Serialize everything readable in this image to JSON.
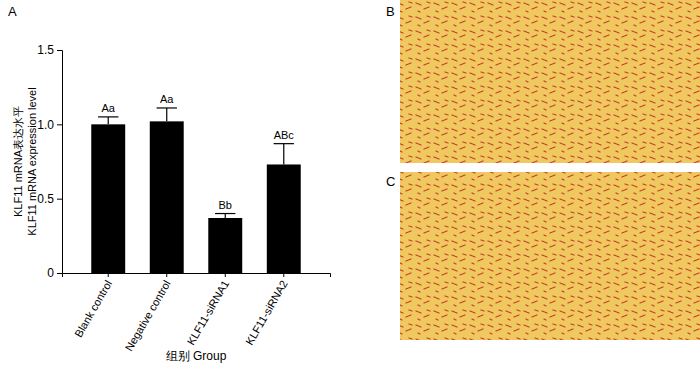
{
  "chart_data": {
    "type": "bar",
    "panel_labels": [
      "A",
      "B",
      "C"
    ],
    "y_label": [
      "KLF11 mRNA表达水平",
      "KLF11 mRNA expression level"
    ],
    "x_label": "组别 Group",
    "categories": [
      "Blank control",
      "Negative control",
      "KLF11-siRNA1",
      "KLF11-siRNA2"
    ],
    "values": [
      1.0,
      1.02,
      0.37,
      0.73
    ],
    "errors": [
      0.05,
      0.09,
      0.03,
      0.14
    ],
    "annotations": [
      "Aa",
      "Aa",
      "Bb",
      "ABc"
    ],
    "color": "#000000",
    "ylim": [
      0,
      1.5
    ],
    "yticks": [
      0,
      0.5,
      {
        "value": 1,
        "label": "1.0"
      },
      1.5
    ],
    "grid": false
  }
}
